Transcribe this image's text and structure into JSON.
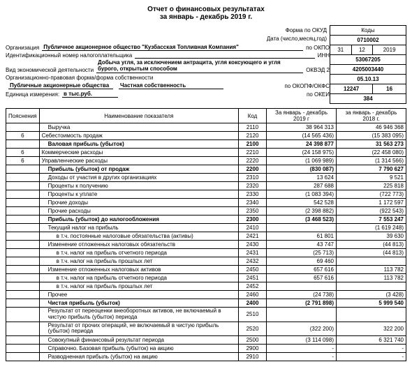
{
  "title": "Отчет о финансовых результатах",
  "subtitle": "за январь - декабрь 2019 г.",
  "codes_header": "Коды",
  "form_okud_label": "Форма по ОКУД",
  "form_okud": "0710002",
  "date_label": "Дата (число,месяц,год)",
  "date_d": "31",
  "date_m": "12",
  "date_y": "2019",
  "org_label": "Организация",
  "org_value": "Публичное акционерное общество \"Кузбасская Топливная Компания\"",
  "okpo_label": "по ОКПО",
  "okpo": "53067205",
  "inn_label_long": "Идентификационный номер налогоплательщика",
  "inn_label": "ИНН",
  "inn": "4205003440",
  "activity_label": "Вид экономической деятельности",
  "activity_value": "Добыча угля, за исключением антрацита, угля коксующего и угля бурого, открытым способом",
  "okved_label": "ОКВЭД 2",
  "okved": "05.10.13",
  "legal_form_label": "Организационно-правовая форма",
  "ownership_label": "/форма собственности",
  "legal_form_value": "Публичные акционерные общества",
  "ownership_value": "Частная собственность",
  "okopf_label": "по ОКОПФ/ОКФС",
  "okopf": "12247",
  "okfs": "16",
  "unit_label": "Единица измерения:",
  "unit_value": "в тыс.руб.",
  "okei_label": "по ОКЕИ",
  "okei": "384",
  "th_poy": "Пояснения",
  "th_name": "Наименование показателя",
  "th_code": "Код",
  "th_p1": "За январь - декабрь 2019 г",
  "th_p2": "за январь - декабрь 2018 г.",
  "rows": [
    {
      "p": "",
      "n": "Выручка",
      "c": "2110",
      "v1": "38 964 313",
      "v2": "46 946 368",
      "ind": 1
    },
    {
      "p": "6",
      "n": "Себестоимость продаж",
      "c": "2120",
      "v1": "(14 565 436)",
      "v2": "(15 383 095)",
      "ind": 0
    },
    {
      "p": "",
      "n": "Валовая прибыль (убыток)",
      "c": "2100",
      "v1": "24 398 877",
      "v2": "31 563 273",
      "ind": 1,
      "b": 1
    },
    {
      "p": "6",
      "n": "Коммерческие расходы",
      "c": "2210",
      "v1": "(24 158 975)",
      "v2": "(22 458 080)",
      "ind": 0
    },
    {
      "p": "6",
      "n": "Управленческие расходы",
      "c": "2220",
      "v1": "(1 069 989)",
      "v2": "(1 314 566)",
      "ind": 0
    },
    {
      "p": "",
      "n": "Прибыль (убыток) от продаж",
      "c": "2200",
      "v1": "(830 087)",
      "v2": "7 790 627",
      "ind": 1,
      "b": 1
    },
    {
      "p": "",
      "n": "Доходы от участия в других организациях",
      "c": "2310",
      "v1": "13 624",
      "v2": "9 521",
      "ind": 1
    },
    {
      "p": "",
      "n": "Проценты к получению",
      "c": "2320",
      "v1": "287 688",
      "v2": "225 818",
      "ind": 1
    },
    {
      "p": "",
      "n": "Проценты к уплате",
      "c": "2330",
      "v1": "(1 083 394)",
      "v2": "(722 773)",
      "ind": 1
    },
    {
      "p": "",
      "n": "Прочие доходы",
      "c": "2340",
      "v1": "542 528",
      "v2": "1 172 597",
      "ind": 1
    },
    {
      "p": "",
      "n": "Прочие расходы",
      "c": "2350",
      "v1": "(2 398 882)",
      "v2": "(922 543)",
      "ind": 1
    },
    {
      "p": "",
      "n": "Прибыль (убыток) до налогообложения",
      "c": "2300",
      "v1": "(3 468 523)",
      "v2": "7 553 247",
      "ind": 1,
      "b": 1
    },
    {
      "p": "",
      "n": "Текущий налог на прибыль",
      "c": "2410",
      "v1": "",
      "v2": "(1 619 248)",
      "ind": 1
    },
    {
      "p": "",
      "n": "в т.ч. постоянные налоговые обязательства (активы)",
      "c": "2421",
      "v1": "61 801",
      "v2": "39 630",
      "ind": 2
    },
    {
      "p": "",
      "n": "Изменение отложенных налоговых обязательств",
      "c": "2430",
      "v1": "43 747",
      "v2": "(44 813)",
      "ind": 1
    },
    {
      "p": "",
      "n": "в т.ч. налог на прибыль отчетного периода",
      "c": "2431",
      "v1": "(25 713)",
      "v2": "(44 813)",
      "ind": 2
    },
    {
      "p": "",
      "n": "в т.ч. налог на прибыль прошлых лет",
      "c": "2432",
      "v1": "69 460",
      "v2": "",
      "ind": 2
    },
    {
      "p": "",
      "n": "Изменение отложенных налоговых активов",
      "c": "2450",
      "v1": "657 616",
      "v2": "113 782",
      "ind": 1
    },
    {
      "p": "",
      "n": "в т.ч. налог на прибыль отчетного периода",
      "c": "2451",
      "v1": "657 616",
      "v2": "113 782",
      "ind": 2
    },
    {
      "p": "",
      "n": "в т.ч. налог на прибыль прошлых лет",
      "c": "2452",
      "v1": "",
      "v2": "",
      "ind": 2
    },
    {
      "p": "",
      "n": "Прочее",
      "c": "2460",
      "v1": "(24 738)",
      "v2": "(3 428)",
      "ind": 1
    },
    {
      "p": "",
      "n": "Чистая прибыль (убыток)",
      "c": "2400",
      "v1": "(2 791 898)",
      "v2": "5 999 540",
      "ind": 1,
      "b": 1
    },
    {
      "p": "",
      "n": "Результат от переоценки внеоборотных активов, не включаемый в чистую прибыль (убыток) периода",
      "c": "2510",
      "v1": "",
      "v2": "",
      "ind": 1,
      "ml": 1
    },
    {
      "p": "",
      "n": "Результат от прочих операций, не включаемый в чистую прибыль (убыток) периода",
      "c": "2520",
      "v1": "(322 200)",
      "v2": "322 200",
      "ind": 1,
      "ml": 1
    },
    {
      "p": "",
      "n": "Совокупный финансовый результат периода",
      "c": "2500",
      "v1": "(3 114 098)",
      "v2": "6 321 740",
      "ind": 1
    },
    {
      "p": "",
      "n": "Справочно. Базовая прибыль (убыток) на акцию",
      "c": "2900",
      "v1": "-",
      "v2": "-",
      "ind": 1
    },
    {
      "p": "",
      "n": "Разводненная прибыль (убыток) на акцию",
      "c": "2910",
      "v1": "-",
      "v2": "-",
      "ind": 1
    }
  ]
}
